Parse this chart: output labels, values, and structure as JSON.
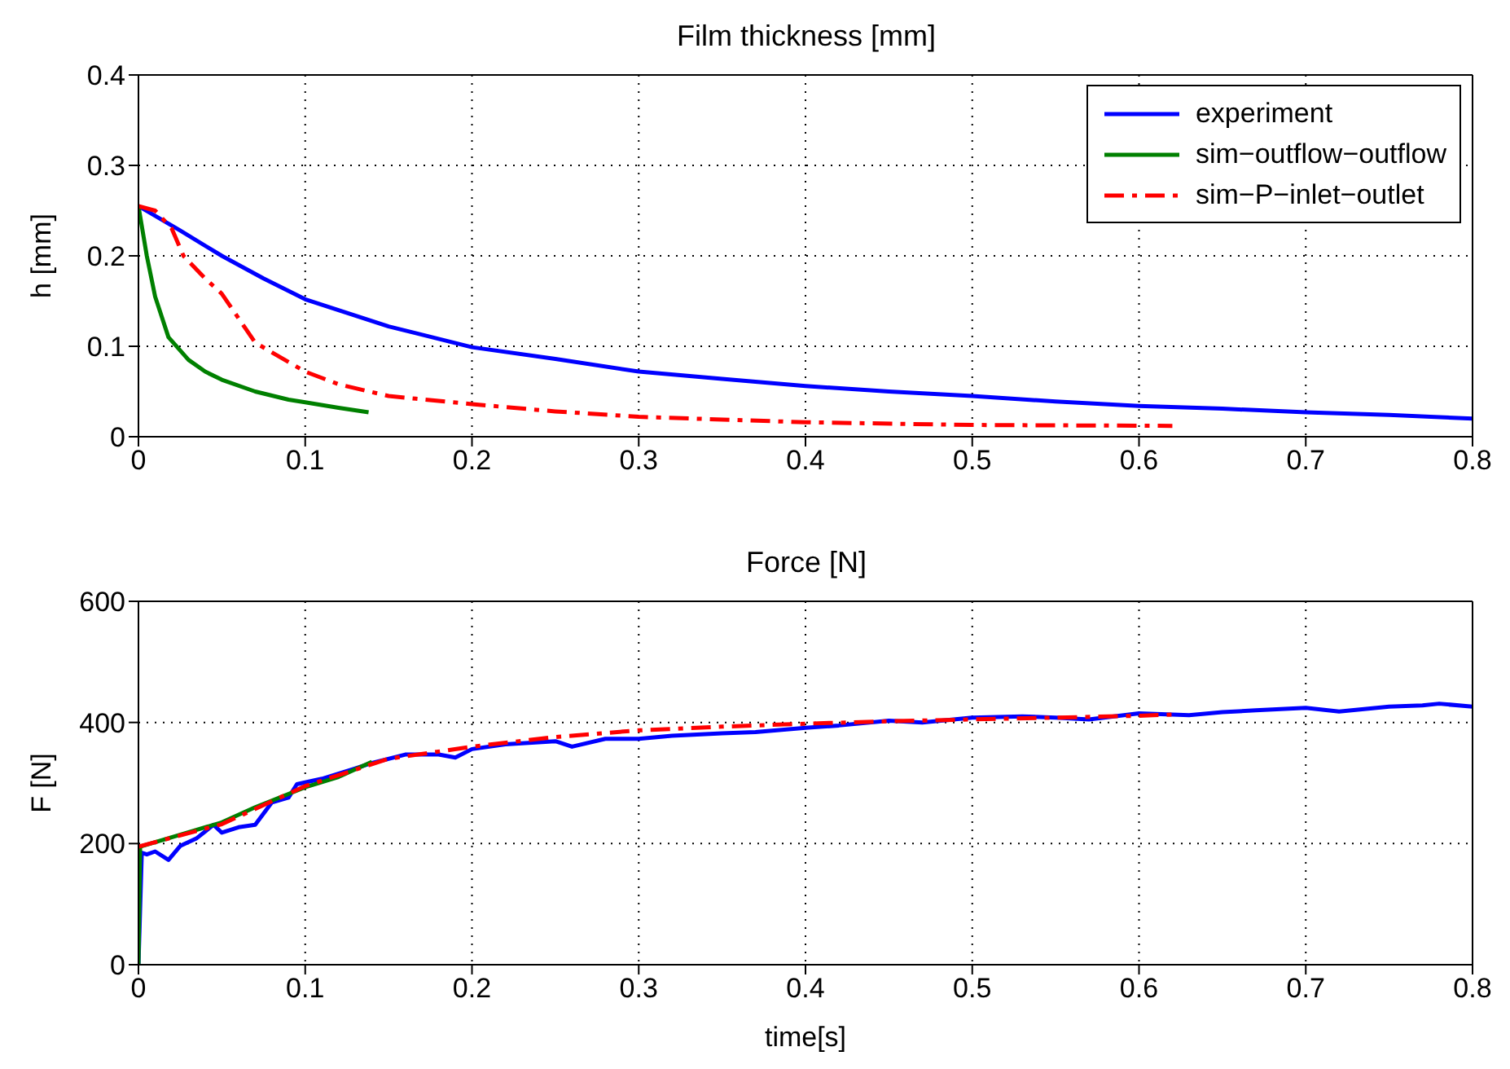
{
  "chart_data": [
    {
      "type": "line",
      "title": "Film thickness [mm]",
      "ylabel": "h [mm]",
      "xlim": [
        0,
        0.8
      ],
      "xticks": [
        0,
        0.1,
        0.2,
        0.3,
        0.4,
        0.5,
        0.6,
        0.7,
        0.8
      ],
      "ylim": [
        0,
        0.4
      ],
      "yticks": [
        0,
        0.1,
        0.2,
        0.3,
        0.4
      ],
      "grid": true,
      "legend": "top right",
      "series": [
        {
          "name": "experiment",
          "color": "#0000ff",
          "line_style": "solid",
          "x": [
            0,
            0.025,
            0.05,
            0.075,
            0.1,
            0.15,
            0.2,
            0.25,
            0.3,
            0.35,
            0.4,
            0.45,
            0.5,
            0.55,
            0.6,
            0.65,
            0.7,
            0.75,
            0.8
          ],
          "values": [
            0.255,
            0.228,
            0.2,
            0.175,
            0.152,
            0.122,
            0.099,
            0.086,
            0.072,
            0.064,
            0.056,
            0.05,
            0.045,
            0.039,
            0.034,
            0.031,
            0.027,
            0.024,
            0.02
          ]
        },
        {
          "name": "sim−outflow−outflow",
          "color": "#008000",
          "line_style": "solid",
          "x": [
            0,
            0.005,
            0.01,
            0.018,
            0.03,
            0.04,
            0.05,
            0.07,
            0.09,
            0.1,
            0.12,
            0.138
          ],
          "values": [
            0.255,
            0.2,
            0.155,
            0.11,
            0.085,
            0.072,
            0.063,
            0.05,
            0.041,
            0.038,
            0.032,
            0.027
          ]
        },
        {
          "name": "sim−P−inlet−outlet",
          "color": "#ff0000",
          "line_style": "dashed",
          "x": [
            0,
            0.01,
            0.02,
            0.027,
            0.04,
            0.05,
            0.07,
            0.1,
            0.12,
            0.15,
            0.2,
            0.25,
            0.3,
            0.4,
            0.5,
            0.62
          ],
          "values": [
            0.255,
            0.25,
            0.23,
            0.2,
            0.175,
            0.158,
            0.104,
            0.072,
            0.058,
            0.045,
            0.036,
            0.028,
            0.022,
            0.016,
            0.013,
            0.012
          ]
        }
      ]
    },
    {
      "type": "line",
      "title": "Force [N]",
      "xlabel": "time[s]",
      "ylabel": "F [N]",
      "xlim": [
        0,
        0.8
      ],
      "xticks": [
        0,
        0.1,
        0.2,
        0.3,
        0.4,
        0.5,
        0.6,
        0.7,
        0.8
      ],
      "ylim": [
        0,
        600
      ],
      "yticks": [
        0,
        200,
        400,
        600
      ],
      "grid": true,
      "series": [
        {
          "color": "#0000ff",
          "line_style": "solid",
          "x": [
            0,
            0.002,
            0.005,
            0.01,
            0.018,
            0.025,
            0.035,
            0.045,
            0.05,
            0.06,
            0.07,
            0.08,
            0.09,
            0.095,
            0.11,
            0.13,
            0.14,
            0.16,
            0.18,
            0.19,
            0.2,
            0.22,
            0.25,
            0.26,
            0.28,
            0.3,
            0.32,
            0.35,
            0.37,
            0.4,
            0.42,
            0.45,
            0.47,
            0.5,
            0.53,
            0.55,
            0.57,
            0.6,
            0.63,
            0.65,
            0.67,
            0.7,
            0.72,
            0.75,
            0.77,
            0.78,
            0.8
          ],
          "values": [
            0,
            185,
            182,
            187,
            173,
            196,
            209,
            231,
            218,
            227,
            231,
            268,
            276,
            298,
            307,
            324,
            333,
            347,
            347,
            342,
            356,
            364,
            369,
            360,
            373,
            373,
            378,
            382,
            384,
            391,
            395,
            403,
            400,
            408,
            410,
            408,
            405,
            415,
            412,
            417,
            420,
            424,
            418,
            426,
            428,
            431,
            426
          ]
        },
        {
          "color": "#008000",
          "line_style": "solid",
          "x": [
            0,
            0.001,
            0.05,
            0.07,
            0.1,
            0.12,
            0.14
          ],
          "values": [
            0,
            195,
            235,
            260,
            293,
            310,
            335
          ]
        },
        {
          "color": "#ff0000",
          "line_style": "dashed",
          "x": [
            0,
            0.05,
            0.1,
            0.15,
            0.2,
            0.25,
            0.3,
            0.35,
            0.4,
            0.45,
            0.5,
            0.55,
            0.6,
            0.62
          ],
          "values": [
            195,
            232,
            295,
            340,
            360,
            376,
            387,
            393,
            398,
            402,
            405,
            408,
            411,
            413
          ]
        }
      ]
    }
  ]
}
